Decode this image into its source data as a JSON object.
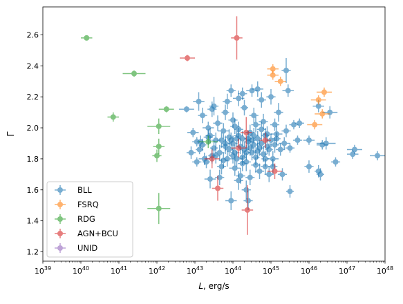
{
  "chart_data": {
    "type": "scatter",
    "title": "",
    "xlabel_italic": "L",
    "xlabel_rest": ", erg/s",
    "ylabel": "Γ",
    "xscale": "log",
    "xlim_exp": [
      39,
      48
    ],
    "ylim": [
      1.14,
      2.78
    ],
    "x_tick_exps": [
      39,
      40,
      41,
      42,
      43,
      44,
      45,
      46,
      47,
      48
    ],
    "x_tick_base": "10",
    "y_ticks": [
      1.2,
      1.4,
      1.6,
      1.8,
      2.0,
      2.2,
      2.4,
      2.6
    ],
    "y_tick_labels": [
      "1.2",
      "1.4",
      "1.6",
      "1.8",
      "2.0",
      "2.2",
      "2.4",
      "2.6"
    ],
    "grid": false,
    "legend_position": "lower-left",
    "series": [
      {
        "name": "BLL",
        "color": "#1f77b4",
        "points": [
          [
            42.78,
            2.12,
            0.2,
            0.02
          ],
          [
            42.95,
            1.97,
            0.15,
            0.03
          ],
          [
            43.05,
            1.91,
            0.12,
            0.03
          ],
          [
            43.2,
            1.89,
            0.1,
            0.04
          ],
          [
            43.12,
            1.86,
            0.1,
            0.03
          ],
          [
            43.25,
            1.8,
            0.15,
            0.04
          ],
          [
            43.05,
            1.78,
            0.12,
            0.03
          ],
          [
            42.9,
            1.84,
            0.12,
            0.04
          ],
          [
            43.15,
            1.91,
            0.1,
            0.04
          ],
          [
            43.3,
            1.78,
            0.1,
            0.04
          ],
          [
            43.35,
            2.0,
            0.15,
            0.04
          ],
          [
            43.4,
            1.95,
            0.12,
            0.05
          ],
          [
            43.5,
            1.87,
            0.1,
            0.05
          ],
          [
            43.55,
            1.82,
            0.1,
            0.05
          ],
          [
            43.65,
            1.84,
            0.12,
            0.05
          ],
          [
            43.7,
            1.92,
            0.12,
            0.05
          ],
          [
            43.75,
            1.98,
            0.15,
            0.05
          ],
          [
            43.8,
            1.88,
            0.12,
            0.05
          ],
          [
            43.85,
            1.8,
            0.1,
            0.05
          ],
          [
            43.9,
            1.86,
            0.1,
            0.04
          ],
          [
            43.95,
            1.92,
            0.1,
            0.05
          ],
          [
            44.0,
            1.9,
            0.12,
            0.05
          ],
          [
            44.05,
            1.84,
            0.12,
            0.05
          ],
          [
            44.1,
            1.8,
            0.15,
            0.05
          ],
          [
            44.15,
            1.95,
            0.12,
            0.05
          ],
          [
            44.2,
            1.88,
            0.12,
            0.05
          ],
          [
            44.25,
            1.93,
            0.1,
            0.05
          ],
          [
            44.3,
            1.86,
            0.12,
            0.05
          ],
          [
            44.35,
            1.78,
            0.12,
            0.06
          ],
          [
            44.4,
            1.91,
            0.12,
            0.05
          ],
          [
            44.45,
            1.97,
            0.12,
            0.05
          ],
          [
            44.5,
            1.84,
            0.1,
            0.05
          ],
          [
            44.55,
            1.89,
            0.1,
            0.05
          ],
          [
            44.6,
            1.81,
            0.1,
            0.05
          ],
          [
            44.65,
            1.93,
            0.1,
            0.05
          ],
          [
            44.7,
            1.87,
            0.12,
            0.05
          ],
          [
            44.75,
            1.9,
            0.12,
            0.04
          ],
          [
            44.8,
            1.83,
            0.1,
            0.05
          ],
          [
            44.85,
            1.95,
            0.1,
            0.05
          ],
          [
            44.9,
            1.88,
            0.12,
            0.05
          ],
          [
            44.95,
            1.86,
            0.1,
            0.04
          ],
          [
            45.0,
            1.92,
            0.12,
            0.04
          ],
          [
            45.05,
            1.8,
            0.15,
            0.05
          ],
          [
            45.1,
            1.89,
            0.12,
            0.05
          ],
          [
            45.15,
            1.93,
            0.1,
            0.04
          ],
          [
            45.25,
            1.86,
            0.12,
            0.04
          ],
          [
            45.35,
            1.9,
            0.15,
            0.04
          ],
          [
            45.5,
            1.87,
            0.12,
            0.03
          ],
          [
            45.7,
            1.92,
            0.12,
            0.03
          ],
          [
            43.6,
            2.03,
            0.12,
            0.05
          ],
          [
            43.8,
            2.1,
            0.1,
            0.05
          ],
          [
            44.0,
            2.05,
            0.12,
            0.05
          ],
          [
            44.3,
            2.13,
            0.1,
            0.05
          ],
          [
            44.55,
            2.08,
            0.12,
            0.05
          ],
          [
            44.8,
            2.04,
            0.12,
            0.05
          ],
          [
            45.1,
            2.02,
            0.12,
            0.04
          ],
          [
            45.4,
            1.98,
            0.12,
            0.04
          ],
          [
            45.6,
            2.02,
            0.12,
            0.03
          ],
          [
            45.75,
            2.03,
            0.12,
            0.03
          ],
          [
            43.2,
            2.08,
            0.12,
            0.05
          ],
          [
            43.45,
            2.12,
            0.12,
            0.05
          ],
          [
            43.95,
            2.24,
            0.12,
            0.04
          ],
          [
            44.25,
            2.22,
            0.12,
            0.04
          ],
          [
            44.5,
            2.24,
            0.15,
            0.04
          ],
          [
            44.75,
            2.18,
            0.12,
            0.05
          ],
          [
            45.0,
            2.2,
            0.12,
            0.05
          ],
          [
            45.45,
            2.24,
            0.15,
            0.04
          ],
          [
            45.4,
            2.37,
            0.12,
            0.08
          ],
          [
            45.2,
            2.1,
            0.12,
            0.06
          ],
          [
            43.85,
            2.17,
            0.12,
            0.05
          ],
          [
            44.15,
            2.19,
            0.15,
            0.05
          ],
          [
            43.1,
            2.17,
            0.15,
            0.06
          ],
          [
            43.5,
            2.14,
            0.12,
            0.06
          ],
          [
            44.65,
            2.25,
            0.15,
            0.05
          ],
          [
            43.65,
            1.68,
            0.12,
            0.05
          ],
          [
            44.15,
            1.66,
            0.12,
            0.06
          ],
          [
            44.45,
            1.68,
            0.12,
            0.05
          ],
          [
            44.7,
            1.72,
            0.12,
            0.05
          ],
          [
            44.95,
            1.7,
            0.12,
            0.05
          ],
          [
            44.35,
            1.6,
            0.12,
            0.06
          ],
          [
            43.95,
            1.53,
            0.15,
            0.06
          ],
          [
            44.4,
            1.53,
            0.12,
            0.06
          ],
          [
            45.5,
            1.59,
            0.1,
            0.04
          ],
          [
            46.0,
            1.75,
            0.12,
            0.04
          ],
          [
            46.25,
            1.72,
            0.1,
            0.04
          ],
          [
            46.3,
            1.7,
            0.1,
            0.04
          ],
          [
            46.7,
            1.78,
            0.12,
            0.03
          ],
          [
            47.15,
            1.83,
            0.15,
            0.03
          ],
          [
            47.2,
            1.86,
            0.2,
            0.03
          ],
          [
            47.8,
            1.82,
            0.2,
            0.03
          ],
          [
            46.35,
            1.89,
            0.15,
            0.03
          ],
          [
            46.45,
            1.9,
            0.25,
            0.04
          ],
          [
            46.25,
            2.14,
            0.15,
            0.04
          ],
          [
            46.55,
            2.1,
            0.2,
            0.04
          ],
          [
            46.0,
            1.92,
            0.15,
            0.03
          ],
          [
            45.3,
            1.7,
            0.12,
            0.04
          ],
          [
            45.15,
            1.96,
            0.15,
            0.05
          ],
          [
            44.85,
            1.75,
            0.12,
            0.05
          ],
          [
            44.6,
            1.76,
            0.12,
            0.05
          ],
          [
            43.4,
            1.67,
            0.15,
            0.06
          ],
          [
            44.2,
            1.69,
            0.12,
            0.05
          ],
          [
            43.7,
            1.75,
            0.12,
            0.05
          ],
          [
            44.05,
            1.74,
            0.15,
            0.05
          ],
          [
            44.25,
            1.77,
            0.12,
            0.05
          ],
          [
            44.55,
            1.95,
            0.12,
            0.05
          ],
          [
            44.15,
            1.99,
            0.12,
            0.05
          ],
          [
            43.55,
            1.92,
            0.12,
            0.05
          ],
          [
            43.9,
            1.94,
            0.12,
            0.05
          ],
          [
            44.35,
            1.84,
            0.1,
            0.05
          ],
          [
            44.75,
            1.99,
            0.12,
            0.05
          ],
          [
            43.35,
            1.94,
            0.12,
            0.05
          ],
          [
            43.75,
            1.79,
            0.12,
            0.05
          ],
          [
            44.05,
            2.01,
            0.12,
            0.05
          ],
          [
            44.45,
            1.87,
            0.1,
            0.05
          ],
          [
            44.9,
            1.96,
            0.12,
            0.05
          ],
          [
            45.05,
            1.75,
            0.12,
            0.05
          ],
          [
            44.65,
            1.85,
            0.1,
            0.05
          ],
          [
            43.8,
            1.9,
            0.1,
            0.05
          ],
          [
            44.1,
            1.93,
            0.1,
            0.05
          ],
          [
            44.25,
            1.81,
            0.1,
            0.05
          ],
          [
            44.5,
            1.92,
            0.1,
            0.05
          ],
          [
            44.85,
            1.8,
            0.1,
            0.05
          ],
          [
            43.45,
            1.82,
            0.1,
            0.05
          ],
          [
            44.0,
            1.82,
            0.1,
            0.05
          ],
          [
            44.4,
            1.93,
            0.1,
            0.05
          ],
          [
            44.6,
            2.02,
            0.12,
            0.05
          ]
        ]
      },
      {
        "name": "FSRQ",
        "color": "#ff7f0e",
        "points": [
          [
            45.05,
            2.38,
            0.15,
            0.03
          ],
          [
            45.25,
            2.3,
            0.15,
            0.03
          ],
          [
            45.05,
            2.34,
            0.15,
            0.03
          ],
          [
            46.4,
            2.23,
            0.2,
            0.03
          ],
          [
            46.25,
            2.18,
            0.2,
            0.03
          ],
          [
            46.35,
            2.09,
            0.2,
            0.03
          ],
          [
            46.15,
            2.02,
            0.2,
            0.03
          ]
        ]
      },
      {
        "name": "RDG",
        "color": "#2ca02c",
        "points": [
          [
            40.15,
            2.58,
            0.15,
            0.01
          ],
          [
            41.4,
            2.35,
            0.3,
            0.02
          ],
          [
            42.25,
            2.12,
            0.2,
            0.02
          ],
          [
            40.85,
            2.07,
            0.15,
            0.03
          ],
          [
            42.05,
            2.01,
            0.3,
            0.05
          ],
          [
            42.05,
            1.88,
            0.15,
            0.05
          ],
          [
            42.0,
            1.82,
            0.12,
            0.04
          ],
          [
            42.05,
            1.48,
            0.3,
            0.1
          ],
          [
            43.35,
            1.91,
            0.25,
            0.04
          ]
        ]
      },
      {
        "name": "AGN+BCU",
        "color": "#d62728",
        "points": [
          [
            44.1,
            2.58,
            0.15,
            0.14
          ],
          [
            42.8,
            2.45,
            0.2,
            0.02
          ],
          [
            43.45,
            1.8,
            0.2,
            0.06
          ],
          [
            43.6,
            1.61,
            0.15,
            0.08
          ],
          [
            44.35,
            1.97,
            0.15,
            0.1
          ],
          [
            44.85,
            1.92,
            0.15,
            0.05
          ],
          [
            45.1,
            1.72,
            0.2,
            0.05
          ],
          [
            44.15,
            1.87,
            0.2,
            0.06
          ],
          [
            44.38,
            1.47,
            0.15,
            0.16
          ]
        ]
      },
      {
        "name": "UNID",
        "color": "#9467bd",
        "points": []
      }
    ]
  }
}
